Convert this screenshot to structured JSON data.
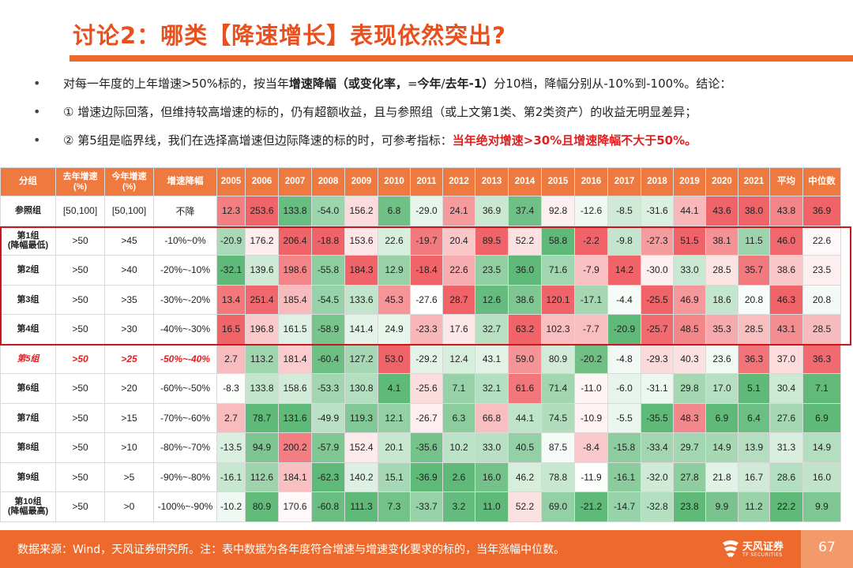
{
  "title": "讨论2：哪类【降速增长】表现依然突出?",
  "bullets": {
    "b1_a": "对每一年度的上年增速>50%标的，按当年",
    "b1_b": "增速降幅（或变化率，",
    "b1_c": "=",
    "b1_d": "今年",
    "b1_e": "/",
    "b1_f": "去年",
    "b1_g": "-1）",
    "b1_h": "分10档，降幅分别从-10%到-100%。结论：",
    "b2": "① 增速边际回落，但维持较高增速的标的，仍有超额收益，且与参照组（或上文第1类、第2类资产）的收益无明显差异；",
    "b3_a": "② 第5组是临界线，我们在选择高增速但边际降速的标的时，可参考指标：",
    "b3_b": "当年绝对增速>30%且增速降幅不大于50%。"
  },
  "table": {
    "headers": [
      "分组",
      "去年增速(%)",
      "今年增速(%)",
      "增速降幅",
      "2005",
      "2006",
      "2007",
      "2008",
      "2009",
      "2010",
      "2011",
      "2012",
      "2013",
      "2014",
      "2015",
      "2016",
      "2017",
      "2018",
      "2019",
      "2020",
      "2021",
      "平均",
      "中位数"
    ],
    "rows": [
      {
        "group": "参照组",
        "last": "[50,100]",
        "this": "[50,100]",
        "drop": "不降",
        "vals": [
          "12.3",
          "253.6",
          "133.8",
          "-54.0",
          "156.2",
          "6.8",
          "-29.0",
          "24.1",
          "36.9",
          "37.4",
          "92.8",
          "-12.6",
          "-8.5",
          "-31.6",
          "44.1",
          "43.6",
          "38.0",
          "43.8",
          "36.9"
        ]
      },
      {
        "group": "第1组\n(降幅最低)",
        "last": ">50",
        "this": ">45",
        "drop": "-10%~0%",
        "vals": [
          "-20.9",
          "176.2",
          "206.4",
          "-18.8",
          "153.6",
          "22.6",
          "-19.7",
          "20.4",
          "89.5",
          "52.2",
          "58.8",
          "-2.2",
          "-9.8",
          "-27.3",
          "51.5",
          "38.1",
          "11.5",
          "46.0",
          "22.6"
        ]
      },
      {
        "group": "第2组",
        "last": ">50",
        "this": ">40",
        "drop": "-20%~-10%",
        "vals": [
          "-32.1",
          "139.6",
          "198.6",
          "-55.8",
          "184.3",
          "12.9",
          "-18.4",
          "22.6",
          "23.5",
          "36.0",
          "71.6",
          "-7.9",
          "14.2",
          "-30.0",
          "33.0",
          "28.5",
          "35.7",
          "38.6",
          "23.5"
        ]
      },
      {
        "group": "第3组",
        "last": ">50",
        "this": ">35",
        "drop": "-30%~-20%",
        "vals": [
          "13.4",
          "251.4",
          "185.4",
          "-54.5",
          "133.6",
          "45.3",
          "-27.6",
          "28.7",
          "12.6",
          "38.6",
          "120.1",
          "-17.1",
          "-4.4",
          "-25.5",
          "46.9",
          "18.6",
          "20.8",
          "46.3",
          "20.8"
        ]
      },
      {
        "group": "第4组",
        "last": ">50",
        "this": ">30",
        "drop": "-40%~-30%",
        "vals": [
          "16.5",
          "196.8",
          "161.5",
          "-58.9",
          "141.4",
          "24.9",
          "-23.3",
          "17.6",
          "32.7",
          "63.2",
          "102.3",
          "-7.7",
          "-20.9",
          "-25.7",
          "48.5",
          "35.3",
          "28.5",
          "43.1",
          "28.5"
        ]
      },
      {
        "group": "第5组",
        "last": ">50",
        "this": ">25",
        "drop": "-50%~-40%",
        "vals": [
          "2.7",
          "113.2",
          "181.4",
          "-60.4",
          "127.2",
          "53.0",
          "-29.2",
          "12.4",
          "43.1",
          "59.0",
          "80.9",
          "-20.2",
          "-4.8",
          "-29.3",
          "40.3",
          "23.6",
          "36.3",
          "37.0",
          "36.3"
        ]
      },
      {
        "group": "第6组",
        "last": ">50",
        "this": ">20",
        "drop": "-60%~-50%",
        "vals": [
          "-8.3",
          "133.8",
          "158.6",
          "-53.3",
          "130.8",
          "4.1",
          "-25.6",
          "7.1",
          "32.1",
          "61.6",
          "71.4",
          "-11.0",
          "-6.0",
          "-31.1",
          "29.8",
          "17.0",
          "5.1",
          "30.4",
          "7.1"
        ]
      },
      {
        "group": "第7组",
        "last": ">50",
        "this": ">15",
        "drop": "-70%~-60%",
        "vals": [
          "2.7",
          "78.7",
          "131.6",
          "-49.9",
          "119.3",
          "12.1",
          "-26.7",
          "6.3",
          "66.8",
          "44.1",
          "74.5",
          "-10.9",
          "-5.5",
          "-35.5",
          "48.3",
          "6.9",
          "6.4",
          "27.6",
          "6.9"
        ]
      },
      {
        "group": "第8组",
        "last": ">50",
        "this": ">10",
        "drop": "-80%~-70%",
        "vals": [
          "-13.5",
          "94.9",
          "200.2",
          "-57.9",
          "152.4",
          "20.1",
          "-35.6",
          "10.2",
          "33.0",
          "40.5",
          "87.5",
          "-8.4",
          "-15.8",
          "-33.4",
          "29.7",
          "14.9",
          "13.9",
          "31.3",
          "14.9"
        ]
      },
      {
        "group": "第9组",
        "last": ">50",
        "this": ">5",
        "drop": "-90%~-80%",
        "vals": [
          "-16.1",
          "112.6",
          "184.1",
          "-62.3",
          "140.2",
          "15.1",
          "-36.9",
          "2.6",
          "16.0",
          "46.2",
          "78.8",
          "-11.9",
          "-16.1",
          "-32.0",
          "27.8",
          "21.8",
          "16.7",
          "28.6",
          "16.0"
        ]
      },
      {
        "group": "第10组\n(降幅最高)",
        "last": ">50",
        "this": ">0",
        "drop": "-100%~-90%",
        "vals": [
          "-10.2",
          "80.9",
          "170.6",
          "-60.8",
          "111.3",
          "7.3",
          "-33.7",
          "3.2",
          "11.0",
          "52.2",
          "69.0",
          "-21.2",
          "-14.7",
          "-32.8",
          "23.8",
          "9.9",
          "11.2",
          "22.2",
          "9.9"
        ]
      }
    ]
  },
  "footer": {
    "source": "数据来源：Wind，天风证券研究所。注：表中数据为各年度符合增速与增速变化要求的标的，当年涨幅中位数。",
    "logo_cn": "天风证券",
    "logo_en": "TF SECURITIES",
    "page": "67"
  },
  "colors": {
    "accent": "#ee6a2c",
    "header_bg": "#ef7a3f",
    "highlight_border": "#c8171e",
    "text_red": "#e41e1e"
  }
}
